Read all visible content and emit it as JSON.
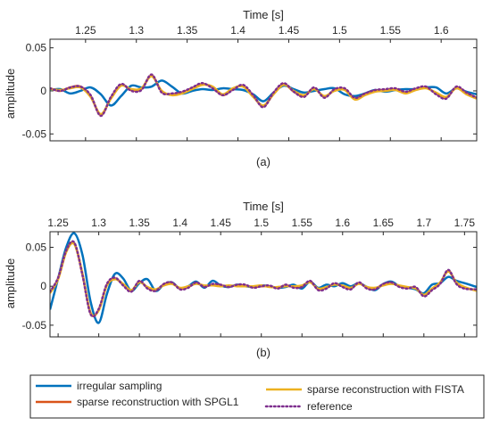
{
  "chart_data": [
    {
      "type": "line",
      "panel_label": "(a)",
      "xlabel": "Time [s]",
      "ylabel": "amplitude",
      "xlim": [
        1.215,
        1.635
      ],
      "ylim": [
        -0.058,
        0.06
      ],
      "xticks": [
        1.25,
        1.3,
        1.35,
        1.4,
        1.45,
        1.5,
        1.55,
        1.6
      ],
      "xtick_labels": [
        "1.25",
        "1.3",
        "1.35",
        "1.4",
        "1.45",
        "1.5",
        "1.55",
        "1.6"
      ],
      "yticks": [
        -0.05,
        0,
        0.05
      ],
      "ytick_labels": [
        "-0.05",
        "0",
        "0.05"
      ],
      "grid": false,
      "x_axis_position": "top",
      "series": [
        {
          "name": "irregular sampling",
          "color": "#0072BD",
          "style": "solid",
          "x": [
            1.215,
            1.225,
            1.235,
            1.245,
            1.255,
            1.265,
            1.275,
            1.285,
            1.295,
            1.305,
            1.315,
            1.325,
            1.335,
            1.345,
            1.355,
            1.365,
            1.375,
            1.385,
            1.395,
            1.405,
            1.415,
            1.425,
            1.435,
            1.445,
            1.455,
            1.465,
            1.475,
            1.485,
            1.495,
            1.505,
            1.515,
            1.525,
            1.535,
            1.545,
            1.555,
            1.565,
            1.575,
            1.585,
            1.595,
            1.605,
            1.615,
            1.625,
            1.635
          ],
          "y": [
            0.001,
            0.002,
            -0.003,
            0.0,
            0.004,
            -0.004,
            -0.017,
            -0.006,
            0.006,
            0.004,
            0.005,
            0.012,
            0.005,
            -0.003,
            0.0,
            0.002,
            0.001,
            0.003,
            0.002,
            0.001,
            -0.004,
            -0.012,
            -0.002,
            0.006,
            0.002,
            -0.002,
            0.0,
            0.002,
            0.003,
            -0.004,
            -0.006,
            -0.003,
            0.001,
            -0.001,
            0.001,
            0.002,
            0.002,
            0.004,
            0.004,
            -0.003,
            0.003,
            -0.001,
            -0.004
          ]
        },
        {
          "name": "sparse reconstruction with SPGL1",
          "color": "#D95319",
          "style": "solid",
          "x": [
            1.215,
            1.225,
            1.235,
            1.245,
            1.255,
            1.265,
            1.275,
            1.285,
            1.295,
            1.305,
            1.315,
            1.325,
            1.335,
            1.345,
            1.355,
            1.365,
            1.375,
            1.385,
            1.395,
            1.405,
            1.415,
            1.425,
            1.435,
            1.445,
            1.455,
            1.465,
            1.475,
            1.485,
            1.495,
            1.505,
            1.515,
            1.525,
            1.535,
            1.545,
            1.555,
            1.565,
            1.575,
            1.585,
            1.595,
            1.605,
            1.615,
            1.625,
            1.635
          ],
          "y": [
            0.003,
            0.0,
            0.004,
            0.005,
            -0.006,
            -0.028,
            -0.008,
            0.007,
            0.001,
            0.002,
            0.018,
            -0.001,
            -0.004,
            -0.002,
            0.003,
            0.008,
            0.004,
            -0.005,
            0.002,
            0.006,
            -0.006,
            -0.018,
            -0.003,
            0.008,
            -0.001,
            -0.006,
            0.003,
            -0.007,
            0.001,
            0.002,
            -0.009,
            -0.004,
            0.0,
            0.001,
            0.002,
            -0.002,
            0.002,
            0.004,
            -0.003,
            -0.008,
            0.004,
            -0.003,
            -0.008
          ]
        },
        {
          "name": "sparse reconstruction with FISTA",
          "color": "#EDB120",
          "style": "solid",
          "x": [
            1.215,
            1.225,
            1.235,
            1.245,
            1.255,
            1.265,
            1.275,
            1.285,
            1.295,
            1.305,
            1.315,
            1.325,
            1.335,
            1.345,
            1.355,
            1.365,
            1.375,
            1.385,
            1.395,
            1.405,
            1.415,
            1.425,
            1.435,
            1.445,
            1.455,
            1.465,
            1.475,
            1.485,
            1.495,
            1.505,
            1.515,
            1.525,
            1.535,
            1.545,
            1.555,
            1.565,
            1.575,
            1.585,
            1.595,
            1.605,
            1.615,
            1.625,
            1.635
          ],
          "y": [
            0.002,
            0.001,
            0.003,
            0.004,
            -0.007,
            -0.027,
            -0.009,
            0.006,
            0.002,
            0.003,
            0.017,
            0.0,
            -0.005,
            -0.003,
            0.002,
            0.007,
            0.005,
            -0.004,
            0.003,
            0.005,
            -0.007,
            -0.017,
            -0.004,
            0.007,
            0.0,
            -0.005,
            0.002,
            -0.006,
            0.0,
            0.001,
            -0.01,
            -0.005,
            -0.001,
            0.0,
            0.001,
            -0.003,
            0.001,
            0.003,
            -0.002,
            -0.007,
            0.003,
            -0.004,
            -0.009
          ]
        },
        {
          "name": "reference",
          "color": "#7E2F8E",
          "style": "dotted",
          "x": [
            1.215,
            1.225,
            1.235,
            1.245,
            1.255,
            1.265,
            1.275,
            1.285,
            1.295,
            1.305,
            1.315,
            1.325,
            1.335,
            1.345,
            1.355,
            1.365,
            1.375,
            1.385,
            1.395,
            1.405,
            1.415,
            1.425,
            1.435,
            1.445,
            1.455,
            1.465,
            1.475,
            1.485,
            1.495,
            1.505,
            1.515,
            1.525,
            1.535,
            1.545,
            1.555,
            1.565,
            1.575,
            1.585,
            1.595,
            1.605,
            1.615,
            1.625,
            1.635
          ],
          "y": [
            0.003,
            0.0,
            0.004,
            0.005,
            -0.005,
            -0.029,
            -0.007,
            0.008,
            0.0,
            0.001,
            0.019,
            -0.002,
            -0.003,
            -0.001,
            0.004,
            0.009,
            0.003,
            -0.005,
            0.001,
            0.007,
            -0.005,
            -0.019,
            -0.002,
            0.009,
            -0.001,
            -0.007,
            0.004,
            -0.008,
            0.002,
            0.003,
            -0.008,
            -0.003,
            0.001,
            0.002,
            0.003,
            -0.001,
            0.003,
            0.005,
            -0.004,
            -0.009,
            0.005,
            -0.002,
            -0.008
          ]
        }
      ]
    },
    {
      "type": "line",
      "panel_label": "(b)",
      "xlabel": "Time [s]",
      "ylabel": "amplitude",
      "xlim": [
        1.24,
        1.765
      ],
      "ylim": [
        -0.065,
        0.07
      ],
      "xticks": [
        1.25,
        1.3,
        1.35,
        1.4,
        1.45,
        1.5,
        1.55,
        1.6,
        1.65,
        1.7,
        1.75
      ],
      "xtick_labels": [
        "1.25",
        "1.3",
        "1.35",
        "1.4",
        "1.45",
        "1.5",
        "1.55",
        "1.6",
        "1.65",
        "1.7",
        "1.75"
      ],
      "yticks": [
        -0.05,
        0,
        0.05
      ],
      "ytick_labels": [
        "-0.05",
        "0",
        "0.05"
      ],
      "grid": false,
      "x_axis_position": "top",
      "series": [
        {
          "name": "irregular sampling",
          "color": "#0072BD",
          "style": "solid",
          "x": [
            1.24,
            1.25,
            1.26,
            1.27,
            1.28,
            1.29,
            1.3,
            1.31,
            1.32,
            1.33,
            1.34,
            1.35,
            1.36,
            1.37,
            1.38,
            1.39,
            1.4,
            1.41,
            1.42,
            1.43,
            1.44,
            1.45,
            1.46,
            1.47,
            1.48,
            1.49,
            1.5,
            1.51,
            1.52,
            1.53,
            1.54,
            1.55,
            1.56,
            1.57,
            1.58,
            1.59,
            1.6,
            1.61,
            1.62,
            1.63,
            1.64,
            1.65,
            1.66,
            1.67,
            1.68,
            1.69,
            1.7,
            1.71,
            1.72,
            1.73,
            1.74,
            1.75,
            1.765
          ],
          "y": [
            -0.03,
            0.01,
            0.05,
            0.068,
            0.04,
            -0.02,
            -0.047,
            -0.01,
            0.016,
            0.01,
            -0.006,
            0.004,
            0.009,
            -0.006,
            0.002,
            0.005,
            -0.003,
            0.0,
            0.006,
            -0.002,
            0.007,
            0.001,
            -0.001,
            0.002,
            0.0,
            -0.001,
            0.001,
            0.0,
            -0.002,
            -0.001,
            0.002,
            -0.003,
            0.006,
            -0.002,
            0.002,
            0.0,
            0.004,
            0.0,
            0.004,
            -0.001,
            -0.005,
            0.003,
            0.006,
            0.0,
            -0.002,
            -0.004,
            -0.009,
            0.002,
            0.004,
            0.012,
            0.007,
            0.004,
            -0.001
          ]
        },
        {
          "name": "sparse reconstruction with SPGL1",
          "color": "#D95319",
          "style": "solid",
          "x": [
            1.24,
            1.25,
            1.26,
            1.27,
            1.28,
            1.29,
            1.3,
            1.31,
            1.32,
            1.33,
            1.34,
            1.35,
            1.36,
            1.37,
            1.38,
            1.39,
            1.4,
            1.41,
            1.42,
            1.43,
            1.44,
            1.45,
            1.46,
            1.47,
            1.48,
            1.49,
            1.5,
            1.51,
            1.52,
            1.53,
            1.54,
            1.55,
            1.56,
            1.57,
            1.58,
            1.59,
            1.6,
            1.61,
            1.62,
            1.63,
            1.64,
            1.65,
            1.66,
            1.67,
            1.68,
            1.69,
            1.7,
            1.71,
            1.72,
            1.73,
            1.74,
            1.75,
            1.765
          ],
          "y": [
            -0.008,
            0.01,
            0.045,
            0.055,
            0.015,
            -0.035,
            -0.03,
            0.002,
            0.01,
            0.002,
            -0.006,
            0.006,
            -0.002,
            -0.005,
            0.002,
            0.004,
            -0.003,
            -0.001,
            0.004,
            0.0,
            0.002,
            0.001,
            0.0,
            0.001,
            0.001,
            -0.001,
            0.0,
            0.0,
            -0.002,
            0.001,
            -0.001,
            0.0,
            0.006,
            -0.004,
            -0.002,
            0.003,
            0.0,
            -0.003,
            0.004,
            -0.002,
            -0.003,
            0.002,
            0.004,
            0.0,
            -0.002,
            -0.002,
            -0.012,
            -0.004,
            0.004,
            0.02,
            0.004,
            -0.002,
            -0.005
          ]
        },
        {
          "name": "sparse reconstruction with FISTA",
          "color": "#EDB120",
          "style": "solid",
          "x": [
            1.24,
            1.25,
            1.26,
            1.27,
            1.28,
            1.29,
            1.3,
            1.31,
            1.32,
            1.33,
            1.34,
            1.35,
            1.36,
            1.37,
            1.38,
            1.39,
            1.4,
            1.41,
            1.42,
            1.43,
            1.44,
            1.45,
            1.46,
            1.47,
            1.48,
            1.49,
            1.5,
            1.51,
            1.52,
            1.53,
            1.54,
            1.55,
            1.56,
            1.57,
            1.58,
            1.59,
            1.6,
            1.61,
            1.62,
            1.63,
            1.64,
            1.65,
            1.66,
            1.67,
            1.68,
            1.69,
            1.7,
            1.71,
            1.72,
            1.73,
            1.74,
            1.75,
            1.765
          ],
          "y": [
            -0.009,
            0.009,
            0.044,
            0.054,
            0.016,
            -0.034,
            -0.031,
            0.001,
            0.009,
            0.003,
            -0.005,
            0.005,
            -0.001,
            -0.004,
            0.001,
            0.003,
            -0.002,
            0.0,
            0.003,
            0.001,
            0.001,
            0.0,
            0.001,
            0.0,
            0.0,
            0.0,
            0.001,
            -0.001,
            -0.001,
            0.0,
            0.0,
            0.001,
            0.005,
            -0.003,
            -0.001,
            0.002,
            0.001,
            -0.002,
            0.003,
            -0.001,
            -0.002,
            0.001,
            0.003,
            0.001,
            -0.001,
            -0.003,
            -0.011,
            -0.003,
            0.005,
            0.019,
            0.005,
            -0.001,
            -0.006
          ]
        },
        {
          "name": "reference",
          "color": "#7E2F8E",
          "style": "dotted",
          "x": [
            1.24,
            1.25,
            1.26,
            1.27,
            1.28,
            1.29,
            1.3,
            1.31,
            1.32,
            1.33,
            1.34,
            1.35,
            1.36,
            1.37,
            1.38,
            1.39,
            1.4,
            1.41,
            1.42,
            1.43,
            1.44,
            1.45,
            1.46,
            1.47,
            1.48,
            1.49,
            1.5,
            1.51,
            1.52,
            1.53,
            1.54,
            1.55,
            1.56,
            1.57,
            1.58,
            1.59,
            1.6,
            1.61,
            1.62,
            1.63,
            1.64,
            1.65,
            1.66,
            1.67,
            1.68,
            1.69,
            1.7,
            1.71,
            1.72,
            1.73,
            1.74,
            1.75,
            1.765
          ],
          "y": [
            -0.007,
            0.011,
            0.046,
            0.056,
            0.014,
            -0.036,
            -0.029,
            0.003,
            0.011,
            0.001,
            -0.007,
            0.007,
            -0.003,
            -0.006,
            0.003,
            0.005,
            -0.004,
            -0.002,
            0.005,
            -0.001,
            0.003,
            0.002,
            -0.001,
            0.002,
            0.002,
            -0.002,
            0.0,
            0.001,
            -0.003,
            0.002,
            -0.002,
            -0.001,
            0.007,
            -0.005,
            -0.003,
            0.004,
            -0.001,
            -0.004,
            0.005,
            -0.003,
            -0.004,
            0.003,
            0.005,
            -0.001,
            -0.003,
            -0.001,
            -0.013,
            -0.005,
            0.003,
            0.021,
            0.003,
            -0.003,
            -0.004
          ]
        }
      ]
    }
  ],
  "legend": {
    "placement": "bottom",
    "entries": [
      {
        "label": "irregular sampling",
        "color": "#0072BD",
        "style": "solid"
      },
      {
        "label": "sparse reconstruction with FISTA",
        "color": "#EDB120",
        "style": "solid"
      },
      {
        "label": "sparse reconstruction with SPGL1",
        "color": "#D95319",
        "style": "solid"
      },
      {
        "label": "reference",
        "color": "#7E2F8E",
        "style": "dotted"
      }
    ]
  }
}
